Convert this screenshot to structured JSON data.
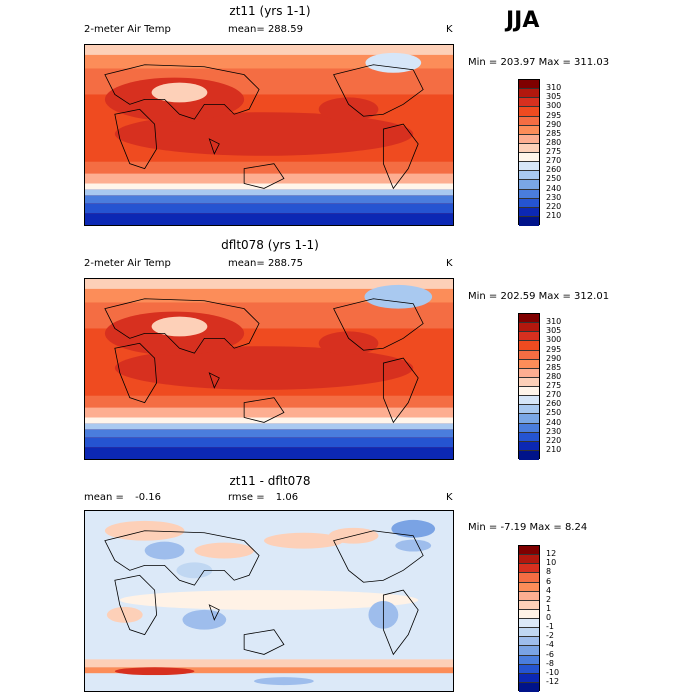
{
  "season": "JJA",
  "panels": [
    {
      "title": "zt11 (yrs 1-1)",
      "variable": "2-meter Air Temp",
      "mean_label": "mean=",
      "mean_value": "288.59",
      "unit": "K",
      "minmax": "Min = 203.97 Max = 311.03",
      "colorbar": [
        "310",
        "305",
        "300",
        "295",
        "290",
        "285",
        "280",
        "275",
        "270",
        "260",
        "250",
        "240",
        "230",
        "220",
        "210"
      ]
    },
    {
      "title": "dflt078 (yrs 1-1)",
      "variable": "2-meter Air Temp",
      "mean_label": "mean=",
      "mean_value": "288.75",
      "unit": "K",
      "minmax": "Min = 202.59 Max = 312.01",
      "colorbar": [
        "310",
        "305",
        "300",
        "295",
        "290",
        "285",
        "280",
        "275",
        "270",
        "260",
        "250",
        "240",
        "230",
        "220",
        "210"
      ]
    },
    {
      "title": "zt11 - dflt078",
      "mean_label": "mean =",
      "mean_value": "-0.16",
      "rmse_label": "rmse =",
      "rmse_value": "1.06",
      "unit": "K",
      "minmax": "Min = -7.19 Max = 8.24",
      "colorbar": [
        "12",
        "10",
        "8",
        "6",
        "4",
        "2",
        "1",
        "0",
        "-1",
        "-2",
        "-4",
        "-6",
        "-8",
        "-10",
        "-12"
      ]
    }
  ],
  "colors": {
    "temp_scale": [
      "#7f0000",
      "#b2180e",
      "#d7301f",
      "#ef4b20",
      "#f46d43",
      "#fc8d59",
      "#fdae91",
      "#fdd0b8",
      "#fff5ea",
      "#d6e6f8",
      "#a9c9f0",
      "#7aa7e6",
      "#4a7ddd",
      "#2554d1",
      "#0c28b4",
      "#00138a"
    ],
    "diff_scale": [
      "#7f0000",
      "#b2180e",
      "#d7301f",
      "#f46d43",
      "#fc8d59",
      "#fdae91",
      "#fdd0b8",
      "#fff2e6",
      "#dce9f8",
      "#c0d7f2",
      "#9ebdec",
      "#7aa3e4",
      "#4a7ddd",
      "#2554d1",
      "#0c28b4",
      "#00138a"
    ]
  }
}
